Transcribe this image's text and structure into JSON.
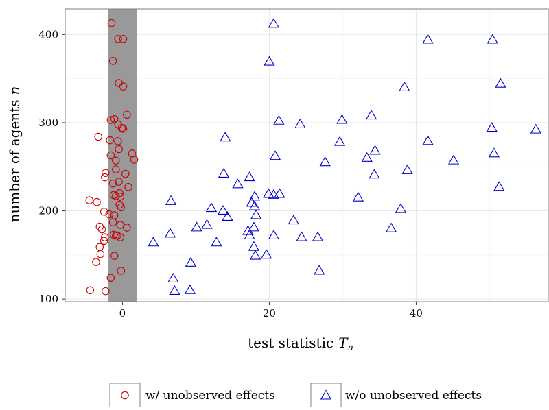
{
  "chart_data": {
    "type": "scatter",
    "xlabel": "test statistic",
    "xlabel_var": "T",
    "xlabel_sub": "n",
    "ylabel": "number of agents",
    "ylabel_var": "n",
    "xlim": [
      -7.8,
      58
    ],
    "ylim": [
      97,
      429
    ],
    "x_ticks": [
      0,
      20,
      40
    ],
    "x_tick_labels": [
      "0",
      "20",
      "40"
    ],
    "y_ticks": [
      100,
      200,
      300,
      400
    ],
    "y_tick_labels": [
      "100",
      "200",
      "300",
      "400"
    ],
    "grid": true,
    "legend_position": "bottom",
    "shaded_band": {
      "x_from": -1.96,
      "x_to": 1.96,
      "color": "#999999"
    },
    "series": [
      {
        "name": "w/ unobserved effects",
        "marker": "circle",
        "color": "#cc0000",
        "points": [
          [
            -1.5,
            413
          ],
          [
            -0.6,
            395
          ],
          [
            0.1,
            395
          ],
          [
            -1.3,
            370
          ],
          [
            -0.5,
            345
          ],
          [
            0.1,
            341
          ],
          [
            0.6,
            309
          ],
          [
            -1.6,
            303
          ],
          [
            -1.1,
            304
          ],
          [
            -0.6,
            298
          ],
          [
            -0.1,
            294
          ],
          [
            0.1,
            293
          ],
          [
            -3.3,
            284
          ],
          [
            -1.7,
            280
          ],
          [
            -0.6,
            279
          ],
          [
            -0.5,
            270
          ],
          [
            -1.6,
            263
          ],
          [
            1.3,
            265
          ],
          [
            1.6,
            258
          ],
          [
            -0.9,
            257
          ],
          [
            0.4,
            242
          ],
          [
            -2.3,
            243
          ],
          [
            -2.4,
            238
          ],
          [
            -0.9,
            247
          ],
          [
            -0.5,
            233
          ],
          [
            -1.3,
            231
          ],
          [
            0.8,
            227
          ],
          [
            -0.4,
            220
          ],
          [
            -0.9,
            217
          ],
          [
            -1.2,
            218
          ],
          [
            -0.3,
            216
          ],
          [
            -4.5,
            212
          ],
          [
            -3.5,
            210
          ],
          [
            -0.4,
            207
          ],
          [
            -0.2,
            204
          ],
          [
            -1.8,
            196
          ],
          [
            -2.5,
            199
          ],
          [
            -1.1,
            195
          ],
          [
            -1.3,
            187
          ],
          [
            -0.3,
            184
          ],
          [
            0.6,
            181
          ],
          [
            -3.1,
            182
          ],
          [
            -2.8,
            179
          ],
          [
            -2.4,
            170
          ],
          [
            -0.7,
            172
          ],
          [
            -1.2,
            173
          ],
          [
            -0.9,
            172
          ],
          [
            -0.3,
            170
          ],
          [
            -2.5,
            166
          ],
          [
            -3.1,
            159
          ],
          [
            -3.0,
            151
          ],
          [
            -1.1,
            149
          ],
          [
            -3.6,
            142
          ],
          [
            -0.2,
            132
          ],
          [
            -1.6,
            124
          ],
          [
            -4.4,
            110
          ],
          [
            -2.3,
            109
          ]
        ]
      },
      {
        "name": "w/o unobserved effects",
        "marker": "triangle",
        "color": "#0000cc",
        "points": [
          [
            20.6,
            413
          ],
          [
            50.4,
            395
          ],
          [
            41.6,
            395
          ],
          [
            20.0,
            370
          ],
          [
            51.5,
            345
          ],
          [
            38.4,
            341
          ],
          [
            33.9,
            309
          ],
          [
            29.9,
            304
          ],
          [
            21.3,
            303
          ],
          [
            24.2,
            299
          ],
          [
            56.3,
            293
          ],
          [
            50.3,
            295
          ],
          [
            14.0,
            284
          ],
          [
            29.6,
            279
          ],
          [
            41.6,
            280
          ],
          [
            34.4,
            269
          ],
          [
            50.6,
            266
          ],
          [
            20.8,
            263
          ],
          [
            33.3,
            261
          ],
          [
            45.1,
            258
          ],
          [
            27.6,
            256
          ],
          [
            38.8,
            247
          ],
          [
            13.8,
            243
          ],
          [
            34.3,
            242
          ],
          [
            17.3,
            239
          ],
          [
            15.7,
            231
          ],
          [
            51.3,
            228
          ],
          [
            19.9,
            220
          ],
          [
            20.6,
            219
          ],
          [
            21.4,
            220
          ],
          [
            18.0,
            217
          ],
          [
            32.1,
            216
          ],
          [
            17.6,
            210
          ],
          [
            18.0,
            206
          ],
          [
            6.6,
            212
          ],
          [
            12.1,
            204
          ],
          [
            13.7,
            201
          ],
          [
            14.3,
            194
          ],
          [
            37.9,
            203
          ],
          [
            18.2,
            196
          ],
          [
            23.3,
            190
          ],
          [
            11.5,
            185
          ],
          [
            10.1,
            182
          ],
          [
            17.9,
            182
          ],
          [
            17.1,
            178
          ],
          [
            36.6,
            181
          ],
          [
            6.5,
            175
          ],
          [
            17.3,
            173
          ],
          [
            20.6,
            173
          ],
          [
            24.4,
            171
          ],
          [
            26.6,
            171
          ],
          [
            4.2,
            165
          ],
          [
            12.8,
            165
          ],
          [
            17.9,
            160
          ],
          [
            18.1,
            150
          ],
          [
            19.6,
            151
          ],
          [
            9.3,
            142
          ],
          [
            26.8,
            133
          ],
          [
            6.9,
            124
          ],
          [
            7.1,
            110
          ],
          [
            9.2,
            111
          ]
        ]
      }
    ]
  }
}
